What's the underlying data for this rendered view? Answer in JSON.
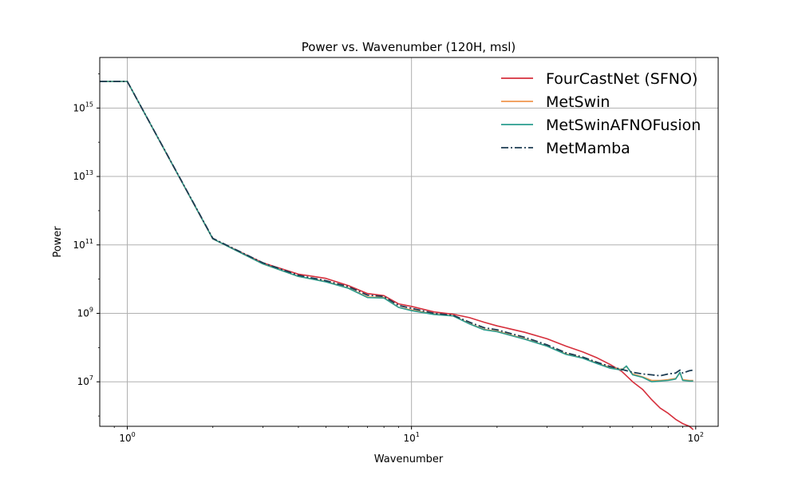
{
  "chart_data": {
    "type": "line",
    "title": "Power vs. Wavenumber (120H, msl)",
    "xlabel": "Wavenumber",
    "ylabel": "Power",
    "xscale": "log",
    "yscale": "log",
    "xlim": [
      0.8,
      120
    ],
    "ylim": [
      500000,
      3e+16
    ],
    "grid": true,
    "legend_position": "top-right",
    "x_ticks": [
      {
        "value": 1,
        "base": "10",
        "exp": "0"
      },
      {
        "value": 10,
        "base": "10",
        "exp": "1"
      },
      {
        "value": 100,
        "base": "10",
        "exp": "2"
      }
    ],
    "y_ticks": [
      {
        "value": 10000000.0,
        "base": "10",
        "exp": "7"
      },
      {
        "value": 1000000000.0,
        "base": "10",
        "exp": "9"
      },
      {
        "value": 100000000000.0,
        "base": "10",
        "exp": "11"
      },
      {
        "value": 10000000000000.0,
        "base": "10",
        "exp": "13"
      },
      {
        "value": 1000000000000000.0,
        "base": "10",
        "exp": "15"
      }
    ],
    "series": [
      {
        "name": "FourCastNet (SFNO)",
        "color": "#d62f3c",
        "style": "solid",
        "points": [
          [
            0.8,
            6000000000000000.0
          ],
          [
            1,
            6000000000000000.0
          ],
          [
            2,
            150000000000.0
          ],
          [
            3,
            30000000000.0
          ],
          [
            4,
            14000000000.0
          ],
          [
            5,
            10500000000.0
          ],
          [
            6,
            6500000000.0
          ],
          [
            7,
            3800000000.0
          ],
          [
            8,
            3300000000.0
          ],
          [
            9,
            1900000000.0
          ],
          [
            10,
            1600000000.0
          ],
          [
            12,
            1100000000.0
          ],
          [
            14,
            950000000.0
          ],
          [
            16,
            750000000.0
          ],
          [
            18,
            550000000.0
          ],
          [
            20,
            430000000.0
          ],
          [
            25,
            280000000.0
          ],
          [
            30,
            180000000.0
          ],
          [
            35,
            110000000.0
          ],
          [
            40,
            75000000.0
          ],
          [
            45,
            50000000.0
          ],
          [
            50,
            32000000.0
          ],
          [
            55,
            20000000.0
          ],
          [
            60,
            10000000.0
          ],
          [
            65,
            6000000.0
          ],
          [
            70,
            3000000.0
          ],
          [
            75,
            1700000.0
          ],
          [
            80,
            1200000.0
          ],
          [
            85,
            800000.0
          ],
          [
            90,
            600000.0
          ],
          [
            95,
            500000.0
          ],
          [
            98,
            400000.0
          ]
        ]
      },
      {
        "name": "MetSwin",
        "color": "#f0964d",
        "style": "solid",
        "points": [
          [
            0.8,
            6000000000000000.0
          ],
          [
            1,
            6000000000000000.0
          ],
          [
            2,
            150000000000.0
          ],
          [
            3,
            28000000000.0
          ],
          [
            4,
            12000000000.0
          ],
          [
            5,
            8500000000.0
          ],
          [
            6,
            5500000000.0
          ],
          [
            7,
            3000000000.0
          ],
          [
            8,
            2900000000.0
          ],
          [
            9,
            1500000000.0
          ],
          [
            10,
            1250000000.0
          ],
          [
            12,
            950000000.0
          ],
          [
            14,
            850000000.0
          ],
          [
            16,
            500000000.0
          ],
          [
            18,
            340000000.0
          ],
          [
            20,
            300000000.0
          ],
          [
            25,
            180000000.0
          ],
          [
            30,
            110000000.0
          ],
          [
            35,
            65000000.0
          ],
          [
            40,
            50000000.0
          ],
          [
            45,
            35000000.0
          ],
          [
            50,
            26000000.0
          ],
          [
            55,
            23000000.0
          ],
          [
            57,
            28000000.0
          ],
          [
            60,
            17000000.0
          ],
          [
            65,
            14000000.0
          ],
          [
            70,
            11000000.0
          ],
          [
            75,
            11000000.0
          ],
          [
            80,
            11500000.0
          ],
          [
            85,
            12500000.0
          ],
          [
            88,
            18000000.0
          ],
          [
            90,
            11500000.0
          ],
          [
            95,
            11000000.0
          ],
          [
            98,
            11000000.0
          ]
        ]
      },
      {
        "name": "MetSwinAFNOFusion",
        "color": "#2a9d8f",
        "style": "solid",
        "points": [
          [
            0.8,
            6000000000000000.0
          ],
          [
            1,
            6000000000000000.0
          ],
          [
            2,
            150000000000.0
          ],
          [
            3,
            28000000000.0
          ],
          [
            4,
            12000000000.0
          ],
          [
            5,
            8300000000.0
          ],
          [
            6,
            5400000000.0
          ],
          [
            7,
            2900000000.0
          ],
          [
            8,
            2800000000.0
          ],
          [
            9,
            1500000000.0
          ],
          [
            10,
            1200000000.0
          ],
          [
            12,
            930000000.0
          ],
          [
            14,
            840000000.0
          ],
          [
            16,
            490000000.0
          ],
          [
            18,
            330000000.0
          ],
          [
            20,
            290000000.0
          ],
          [
            25,
            175000000.0
          ],
          [
            30,
            110000000.0
          ],
          [
            35,
            63000000.0
          ],
          [
            40,
            49000000.0
          ],
          [
            45,
            34000000.0
          ],
          [
            50,
            25000000.0
          ],
          [
            55,
            22000000.0
          ],
          [
            57,
            29000000.0
          ],
          [
            60,
            16000000.0
          ],
          [
            65,
            13500000.0
          ],
          [
            70,
            10000000.0
          ],
          [
            75,
            10500000.0
          ],
          [
            80,
            11000000.0
          ],
          [
            85,
            12000000.0
          ],
          [
            88,
            19000000.0
          ],
          [
            90,
            11000000.0
          ],
          [
            95,
            10500000.0
          ],
          [
            98,
            10500000.0
          ]
        ]
      },
      {
        "name": "MetMamba",
        "color": "#1d3c52",
        "style": "dashdot",
        "points": [
          [
            0.8,
            6000000000000000.0
          ],
          [
            1,
            6000000000000000.0
          ],
          [
            2,
            155000000000.0
          ],
          [
            3,
            30000000000.0
          ],
          [
            4,
            13000000000.0
          ],
          [
            5,
            9000000000.0
          ],
          [
            6,
            6000000000.0
          ],
          [
            7,
            3400000000.0
          ],
          [
            8,
            3100000000.0
          ],
          [
            9,
            1700000000.0
          ],
          [
            10,
            1400000000.0
          ],
          [
            12,
            1000000000.0
          ],
          [
            14,
            880000000.0
          ],
          [
            16,
            550000000.0
          ],
          [
            18,
            380000000.0
          ],
          [
            20,
            330000000.0
          ],
          [
            25,
            200000000.0
          ],
          [
            30,
            120000000.0
          ],
          [
            35,
            70000000.0
          ],
          [
            40,
            53000000.0
          ],
          [
            45,
            37000000.0
          ],
          [
            50,
            28000000.0
          ],
          [
            55,
            23000000.0
          ],
          [
            60,
            19000000.0
          ],
          [
            65,
            17000000.0
          ],
          [
            70,
            16000000.0
          ],
          [
            75,
            15000000.0
          ],
          [
            80,
            17000000.0
          ],
          [
            85,
            18000000.0
          ],
          [
            88,
            22000000.0
          ],
          [
            90,
            18000000.0
          ],
          [
            95,
            21000000.0
          ],
          [
            98,
            22000000.0
          ]
        ]
      }
    ]
  }
}
